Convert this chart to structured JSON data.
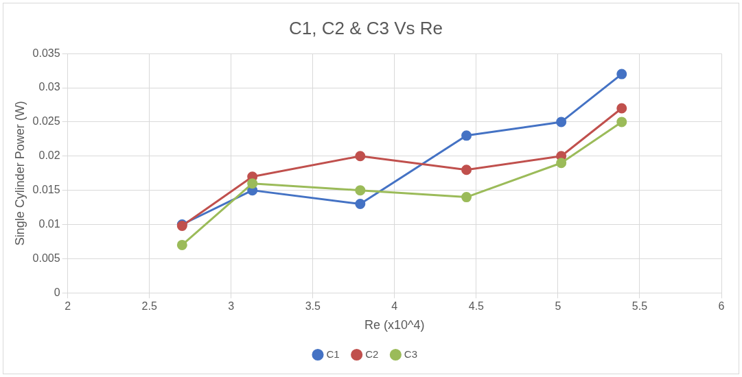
{
  "chart_data": {
    "type": "line",
    "title": "C1, C2 & C3 Vs Re",
    "xlabel": "Re (x10^4)",
    "ylabel": "Single Cylinder Power (W)",
    "x": [
      2.7,
      3.13,
      3.79,
      4.44,
      5.02,
      5.39
    ],
    "series": [
      {
        "name": "C1",
        "color": "#4472c4",
        "values": [
          0.01,
          0.015,
          0.013,
          0.023,
          0.025,
          0.032
        ]
      },
      {
        "name": "C2",
        "color": "#c0504d",
        "values": [
          0.0098,
          0.017,
          0.02,
          0.018,
          0.02,
          0.027
        ]
      },
      {
        "name": "C3",
        "color": "#9bbb59",
        "values": [
          0.007,
          0.016,
          0.015,
          0.014,
          0.019,
          0.025
        ]
      }
    ],
    "xlim": [
      2,
      6
    ],
    "xticks": [
      2,
      2.5,
      3,
      3.5,
      4,
      4.5,
      5,
      5.5,
      6
    ],
    "ylim": [
      0,
      0.035
    ],
    "yticks": [
      0,
      0.005,
      0.01,
      0.015,
      0.02,
      0.025,
      0.03,
      0.035
    ],
    "grid": true,
    "legend": "bottom",
    "marker": "circle",
    "line_style": "solid"
  }
}
